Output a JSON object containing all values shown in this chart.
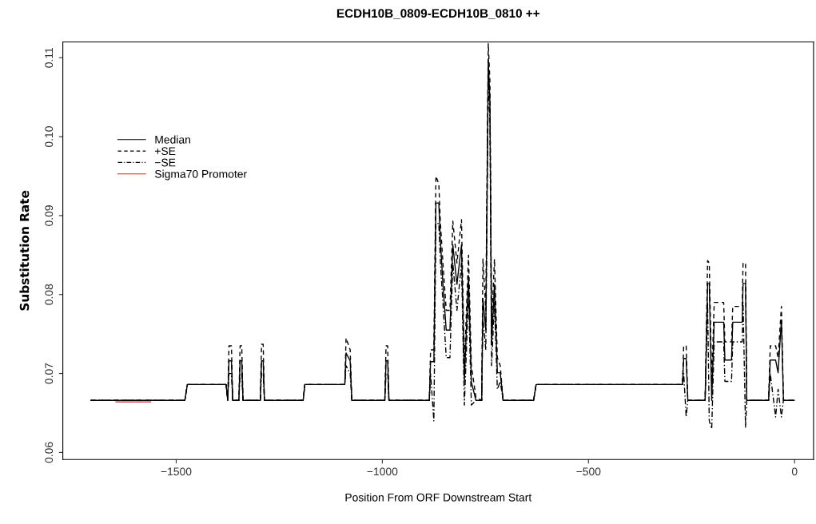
{
  "chart_data": {
    "type": "line",
    "title": "ECDH10B_0809-ECDH10B_0810 ++",
    "xlabel": "Position From ORF Downstream Start",
    "ylabel": "Substitution Rate",
    "x": [
      -1707,
      -1479,
      -1473,
      -1379,
      -1375,
      -1372,
      -1366,
      -1363,
      -1348,
      -1345,
      -1341,
      -1338,
      -1296,
      -1293,
      -1289,
      -1286,
      -1192,
      -1188,
      -1091,
      -1088,
      -1078,
      -1074,
      -994,
      -991,
      -987,
      -984,
      -886,
      -883,
      -875,
      -870,
      -863,
      -859,
      -853,
      -845,
      -836,
      -829,
      -819,
      -808,
      -801,
      -791,
      -784,
      -773,
      -759,
      -756,
      -749,
      -743,
      -739,
      -735,
      -728,
      -721,
      -714,
      -707,
      -633,
      -627,
      -272,
      -269,
      -263,
      -259,
      -217,
      -211,
      -207,
      -201,
      -195,
      -172,
      -169,
      -153,
      -150,
      -127,
      -125,
      -119,
      -116,
      -63,
      -59,
      -46,
      -40,
      -32,
      -27,
      -1
    ],
    "series": [
      {
        "name": "Median",
        "color": "#000000",
        "line_style": "solid",
        "values": [
          0.0666,
          0.0666,
          0.0686,
          0.0686,
          0.0666,
          0.0716,
          0.0716,
          0.0666,
          0.0666,
          0.0716,
          0.0716,
          0.0666,
          0.0666,
          0.0716,
          0.0716,
          0.0666,
          0.0666,
          0.0686,
          0.0686,
          0.0726,
          0.0716,
          0.0666,
          0.0666,
          0.0716,
          0.0716,
          0.0666,
          0.0666,
          0.0715,
          0.0715,
          0.0916,
          0.0916,
          0.0867,
          0.0813,
          0.0755,
          0.0755,
          0.0863,
          0.0813,
          0.0863,
          0.069,
          0.0824,
          0.0689,
          0.0666,
          0.0666,
          0.0795,
          0.0755,
          0.1098,
          0.1044,
          0.0737,
          0.0813,
          0.0701,
          0.0701,
          0.0666,
          0.0666,
          0.0686,
          0.0686,
          0.0719,
          0.0719,
          0.0666,
          0.0666,
          0.0814,
          0.0814,
          0.0666,
          0.0765,
          0.0765,
          0.0717,
          0.0717,
          0.0765,
          0.0765,
          0.0814,
          0.0814,
          0.0666,
          0.0666,
          0.0717,
          0.0717,
          0.0701,
          0.0768,
          0.0666,
          0.0666
        ]
      },
      {
        "name": "+SE",
        "color": "#000000",
        "line_style": "dashed",
        "values": [
          0.0666,
          0.0666,
          0.0686,
          0.0686,
          0.0666,
          0.0735,
          0.0735,
          0.0666,
          0.0666,
          0.0735,
          0.0735,
          0.0666,
          0.0666,
          0.0737,
          0.0737,
          0.0666,
          0.0666,
          0.0686,
          0.0686,
          0.0745,
          0.073,
          0.0666,
          0.0666,
          0.0735,
          0.0735,
          0.0666,
          0.0666,
          0.073,
          0.073,
          0.095,
          0.094,
          0.089,
          0.084,
          0.078,
          0.078,
          0.0893,
          0.084,
          0.0895,
          0.071,
          0.085,
          0.071,
          0.067,
          0.0666,
          0.0845,
          0.078,
          0.1118,
          0.107,
          0.076,
          0.0845,
          0.072,
          0.071,
          0.0666,
          0.0666,
          0.0686,
          0.0686,
          0.0735,
          0.0735,
          0.0666,
          0.0666,
          0.0843,
          0.084,
          0.069,
          0.079,
          0.079,
          0.074,
          0.074,
          0.0785,
          0.0785,
          0.084,
          0.084,
          0.0666,
          0.0666,
          0.0735,
          0.0735,
          0.072,
          0.0785,
          0.0666,
          0.0666
        ]
      },
      {
        "name": "−SE",
        "color": "#000000",
        "line_style": "dashdot",
        "values": [
          0.0666,
          0.0666,
          0.0686,
          0.0686,
          0.0666,
          0.07,
          0.07,
          0.0666,
          0.0666,
          0.07,
          0.07,
          0.0666,
          0.0666,
          0.07,
          0.07,
          0.0666,
          0.0666,
          0.0686,
          0.0686,
          0.071,
          0.07,
          0.0666,
          0.0666,
          0.07,
          0.07,
          0.0666,
          0.0666,
          0.07,
          0.064,
          0.089,
          0.089,
          0.084,
          0.079,
          0.072,
          0.072,
          0.084,
          0.078,
          0.084,
          0.066,
          0.08,
          0.066,
          0.0666,
          0.0666,
          0.077,
          0.073,
          0.107,
          0.102,
          0.071,
          0.079,
          0.068,
          0.069,
          0.0666,
          0.0666,
          0.0686,
          0.0686,
          0.07,
          0.0645,
          0.0666,
          0.0666,
          0.079,
          0.064,
          0.063,
          0.074,
          0.074,
          0.069,
          0.069,
          0.074,
          0.074,
          0.079,
          0.0632,
          0.0666,
          0.0666,
          0.07,
          0.0645,
          0.068,
          0.0645,
          0.0666,
          0.0666
        ]
      },
      {
        "name": "Sigma70 Promoter",
        "color": "#cc2222",
        "line_style": "solid",
        "x": [
          -1646,
          -1562
        ],
        "values": [
          0.0664,
          0.0664
        ]
      }
    ],
    "xlim": [
      -1775,
      46
    ],
    "ylim": [
      0.0591,
      0.112
    ],
    "xticks": [
      {
        "value": -1500,
        "label": "−1500"
      },
      {
        "value": -1000,
        "label": "−1000"
      },
      {
        "value": -500,
        "label": "−500"
      },
      0
    ],
    "yticks": [
      0.06,
      0.07,
      0.08,
      0.09,
      {
        "value": 0.1,
        "label": "0.10"
      },
      0.11
    ],
    "grid": false,
    "legend": "top left",
    "marker": "none"
  }
}
